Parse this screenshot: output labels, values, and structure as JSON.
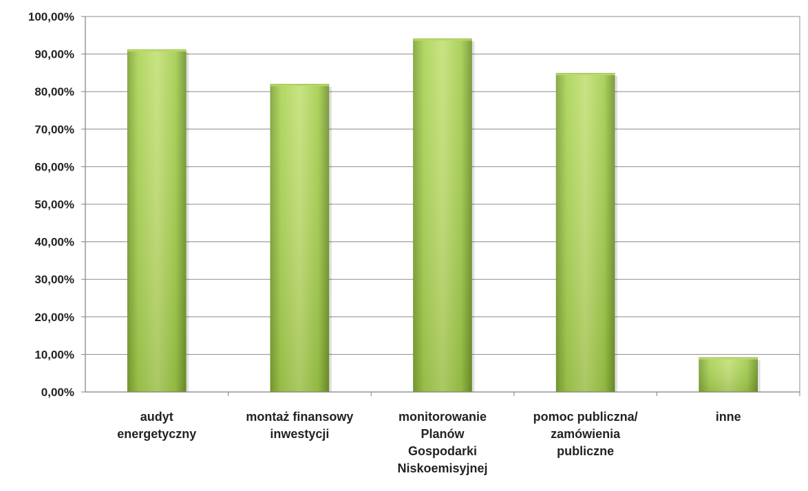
{
  "chart_data": {
    "type": "bar",
    "title": "",
    "xlabel": "",
    "ylabel": "",
    "ylim": [
      0,
      100
    ],
    "ytick_step": 10,
    "y_tick_labels": [
      "0,00%",
      "10,00%",
      "20,00%",
      "30,00%",
      "40,00%",
      "50,00%",
      "60,00%",
      "70,00%",
      "80,00%",
      "90,00%",
      "100,00%"
    ],
    "grid": true,
    "legend": "none",
    "categories": [
      [
        "audyt",
        "energetyczny"
      ],
      [
        "montaż finansowy",
        "inwestycji"
      ],
      [
        "monitorowanie",
        "Planów",
        "Gospodarki",
        "Niskoemisyjnej"
      ],
      [
        "pomoc publiczna/",
        "zamówienia",
        "publiczne"
      ],
      [
        "inne"
      ]
    ],
    "values": [
      91.2,
      82.0,
      94.1,
      84.9,
      9.2
    ],
    "colors": {
      "bar_light": "#c6e07a",
      "bar_main": "#9bc545",
      "bar_dark": "#6b8f2a",
      "bar_top": "#b9d868",
      "grid": "#8c8c8c",
      "axis": "#7f7f7f",
      "text": "#222222"
    }
  }
}
